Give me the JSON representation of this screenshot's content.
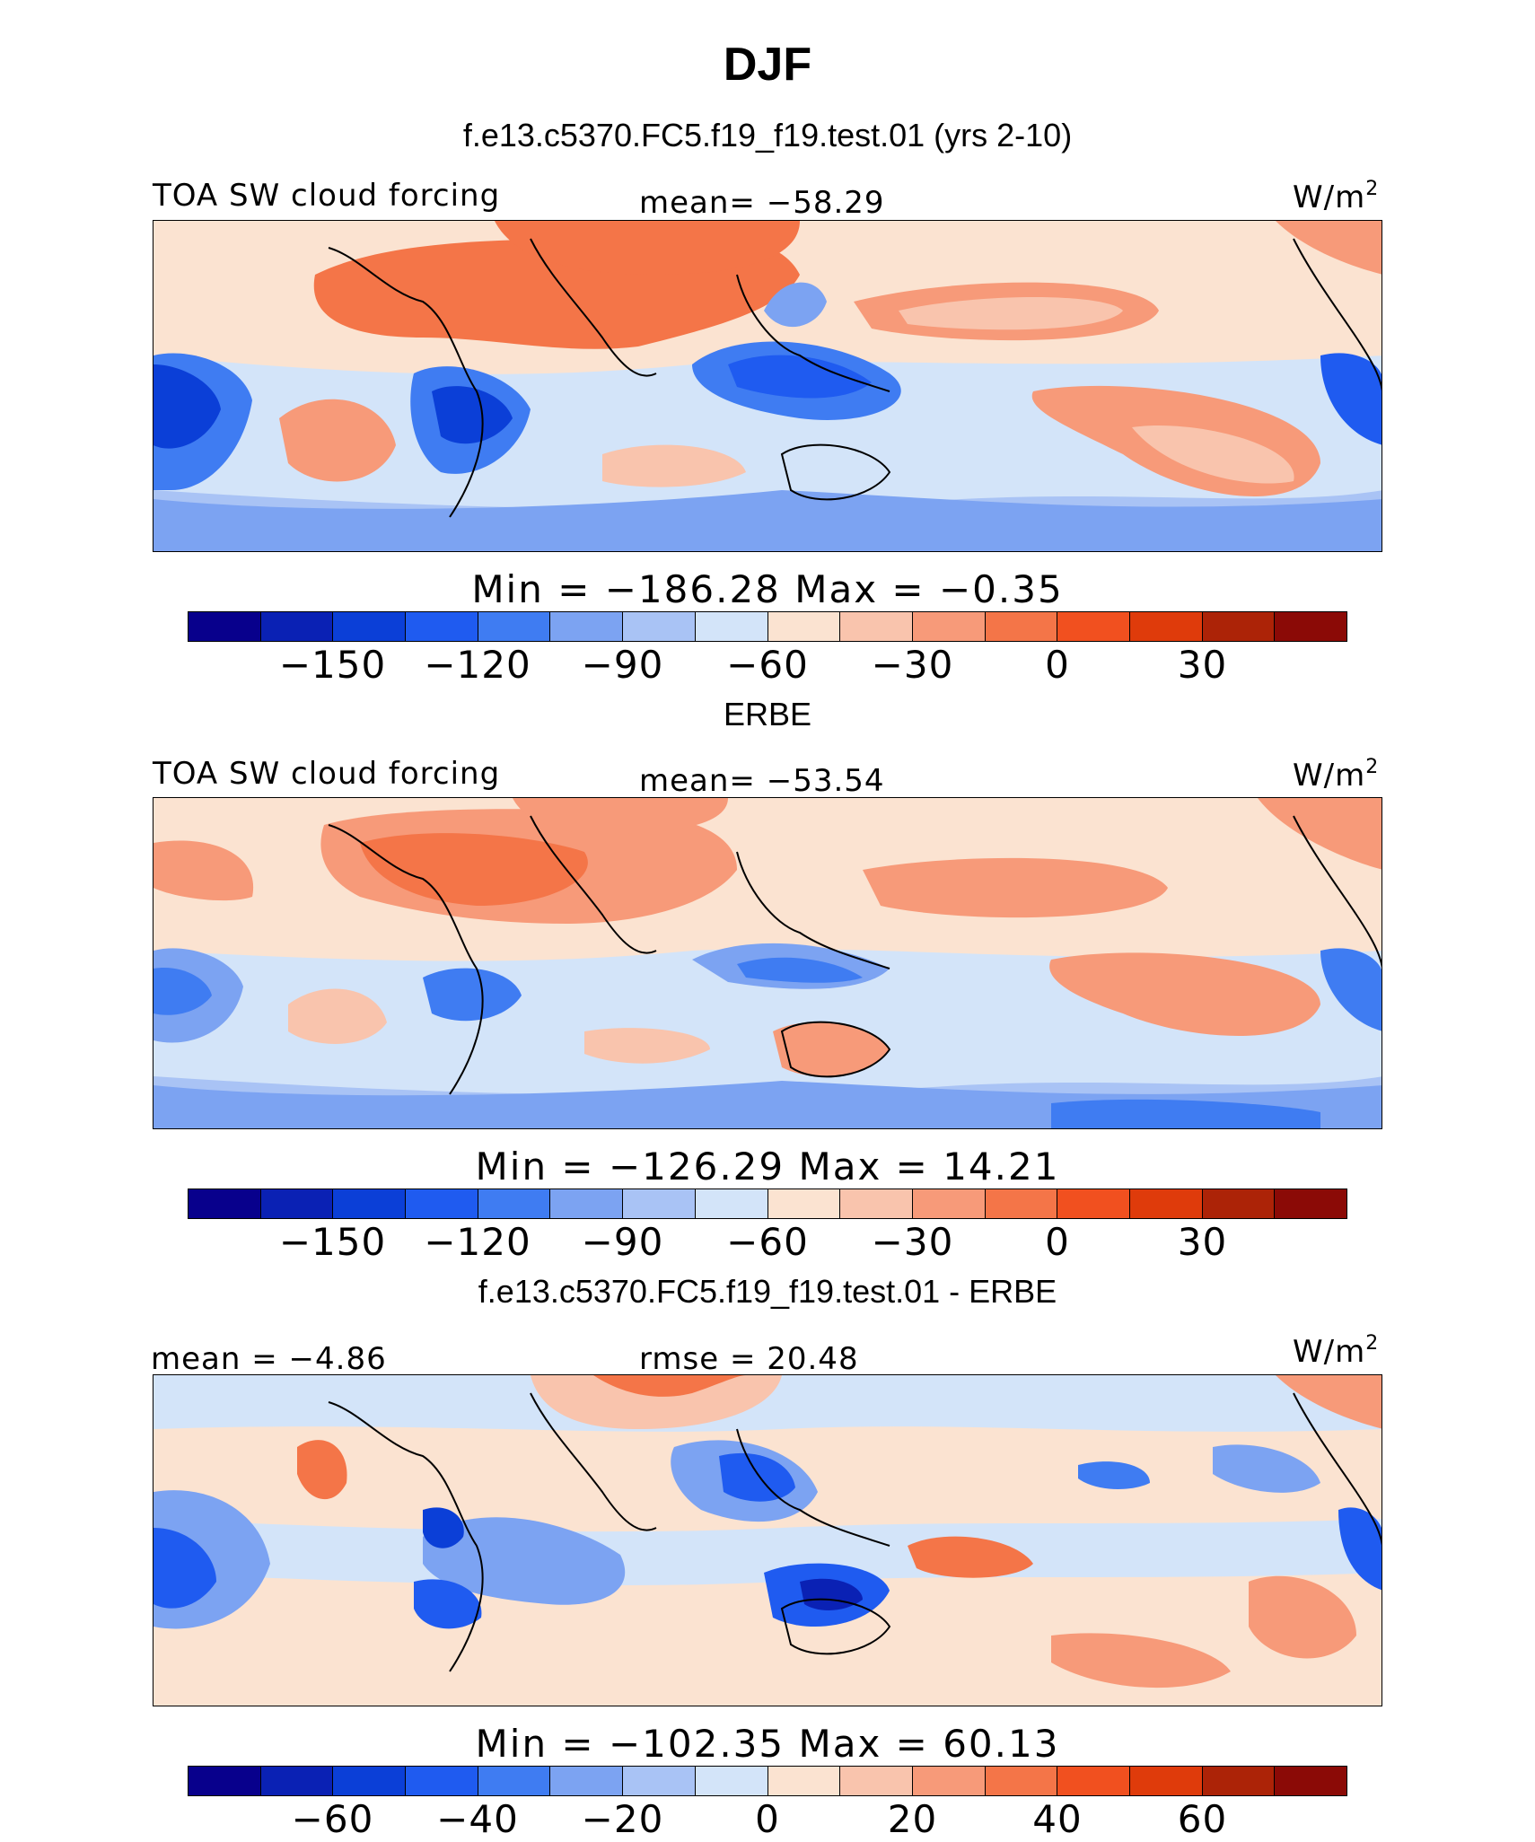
{
  "title": "DJF",
  "colors": [
    "#08008c",
    "#0a21b4",
    "#0b3fd7",
    "#1f5bf0",
    "#3f7cf2",
    "#7ca3f2",
    "#a9c3f5",
    "#d3e4f9",
    "#fbe3d1",
    "#f9c4ad",
    "#f79a79",
    "#f47548",
    "#f1501f",
    "#df3b0b",
    "#ac2307",
    "#8b0a06"
  ],
  "panels": [
    {
      "subtitle": "f.e13.c5370.FC5.f19_f19.test.01 (yrs 2-10)",
      "left_label": "TOA SW cloud forcing",
      "center_label": "mean= −58.29",
      "units": "W/m",
      "units_sup": "2",
      "minmax": "Min = −186.28 Max =  −0.35",
      "colorbar_ticks": [
        "−150",
        "−120",
        "−90",
        "−60",
        "−30",
        "0",
        "30"
      ]
    },
    {
      "subtitle": "ERBE",
      "left_label": "TOA SW cloud forcing",
      "center_label": "mean= −53.54",
      "units": "W/m",
      "units_sup": "2",
      "minmax": "Min = −126.29 Max =  14.21",
      "colorbar_ticks": [
        "−150",
        "−120",
        "−90",
        "−60",
        "−30",
        "0",
        "30"
      ]
    },
    {
      "subtitle": "f.e13.c5370.FC5.f19_f19.test.01 - ERBE",
      "left_label": "mean =  −4.86",
      "center_label": "rmse =  20.48",
      "units": "W/m",
      "units_sup": "2",
      "minmax": "Min = −102.35 Max =  60.13",
      "colorbar_ticks": [
        "−60",
        "−40",
        "−20",
        "0",
        "20",
        "40",
        "60"
      ]
    }
  ]
}
